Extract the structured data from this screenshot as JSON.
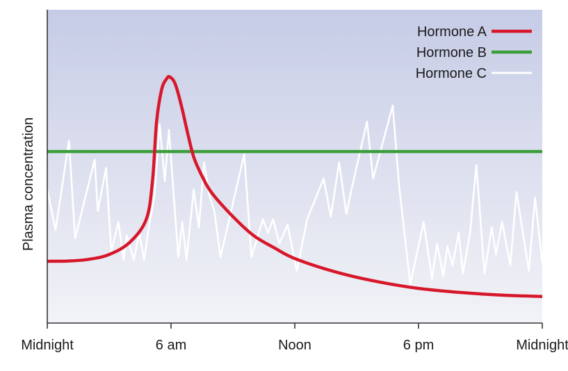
{
  "chart_data": {
    "type": "line",
    "title": "",
    "xlabel": "",
    "ylabel": "Plasma concentration",
    "x_ticks": [
      {
        "value": 0,
        "label": "Midnight"
      },
      {
        "value": 6,
        "label": "6 am"
      },
      {
        "value": 12,
        "label": "Noon"
      },
      {
        "value": 18,
        "label": "6 pm"
      },
      {
        "value": 24,
        "label": "Midnight"
      }
    ],
    "xlim": [
      0,
      24
    ],
    "ylim": [
      0,
      100
    ],
    "grid": false,
    "legend_position": "top-right",
    "background_gradient": [
      "#c6cce6",
      "#f2f3f7"
    ],
    "series": [
      {
        "name": "Hormone A",
        "color": "#d7182a",
        "x": [
          0,
          1,
          2,
          3,
          4,
          4.8,
          5.1,
          5.3,
          5.55,
          5.8,
          5.95,
          6.2,
          6.5,
          6.8,
          7.1,
          7.5,
          8,
          9,
          10,
          11,
          12,
          14,
          16,
          18,
          20,
          22,
          24
        ],
        "y": [
          20.5,
          20.6,
          21.2,
          23,
          27.5,
          36,
          50,
          72,
          84,
          88,
          88.5,
          86,
          78,
          68,
          59,
          52,
          45.5,
          37,
          30,
          25.5,
          21.5,
          16.5,
          13,
          10.5,
          9,
          8,
          7.5
        ]
      },
      {
        "name": "Hormone B",
        "color": "#3a9e3a",
        "x": [
          0,
          24
        ],
        "y": [
          61,
          61
        ]
      },
      {
        "name": "Hormone C",
        "color": "#ffffff",
        "x": [
          0,
          0.4,
          1.05,
          1.35,
          2.3,
          2.45,
          2.85,
          3.1,
          3.45,
          3.7,
          3.85,
          4.2,
          4.45,
          4.7,
          4.9,
          5.2,
          5.45,
          5.7,
          5.9,
          6.35,
          6.55,
          6.75,
          7.1,
          7.35,
          7.6,
          7.85,
          8.1,
          8.4,
          9.55,
          9.9,
          10.45,
          10.7,
          10.95,
          11.25,
          11.65,
          12.1,
          12.6,
          13.4,
          13.75,
          14.15,
          14.5,
          14.75,
          15.5,
          15.8,
          16.75,
          17.05,
          17.6,
          18.25,
          18.65,
          18.9,
          19.2,
          19.4,
          19.65,
          19.95,
          20.15,
          20.5,
          20.8,
          21.2,
          21.55,
          21.75,
          22.05,
          22.45,
          22.75,
          23.35,
          23.65,
          24
        ],
        "y": [
          47,
          32,
          65,
          29,
          58,
          39,
          55,
          24,
          35,
          21,
          30,
          21,
          31,
          21,
          32,
          45,
          71,
          50,
          69,
          22,
          35,
          21,
          47,
          33,
          57,
          45,
          39,
          22,
          60,
          22,
          36,
          31,
          36,
          27,
          34,
          17,
          36,
          51,
          37,
          57,
          38,
          47,
          72,
          51,
          78,
          49,
          12,
          35,
          14,
          27,
          15,
          26,
          19,
          31,
          16,
          31,
          56,
          16,
          33,
          23,
          35,
          19,
          46,
          17,
          44,
          20
        ]
      }
    ]
  }
}
